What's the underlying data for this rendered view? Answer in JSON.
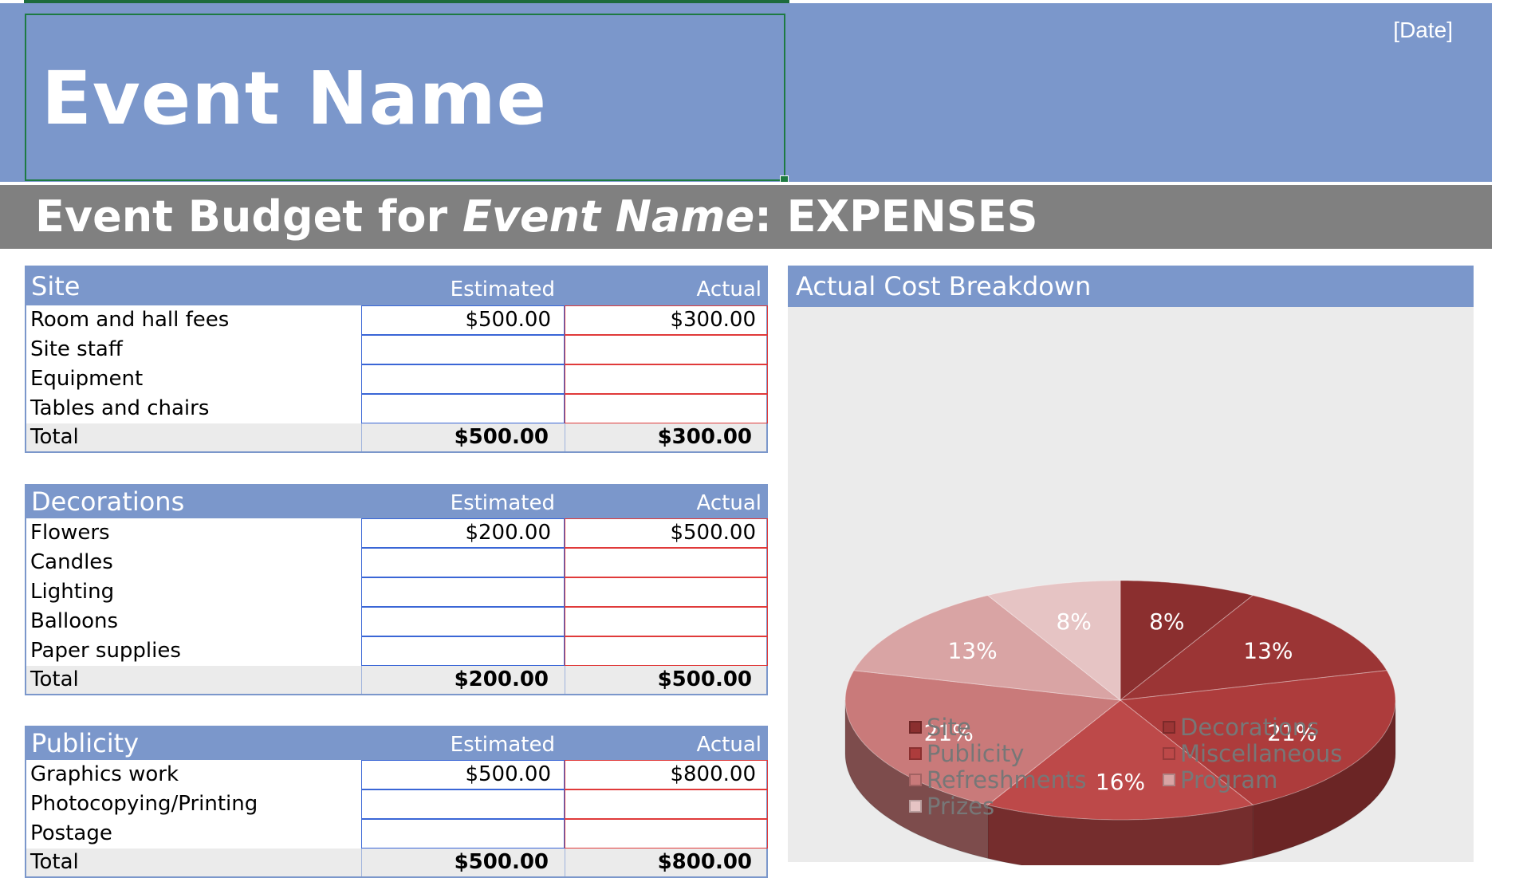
{
  "header": {
    "event_name": "Event Name",
    "date": "[Date]",
    "subtitle_prefix": "Event Budget for ",
    "subtitle_event": "Event Name",
    "subtitle_suffix": ": EXPENSES"
  },
  "sections": [
    {
      "title": "Site",
      "estimated_label": "Estimated",
      "actual_label": "Actual",
      "rows": [
        {
          "label": "Room and hall fees",
          "estimated": "$500.00",
          "actual": "$300.00"
        },
        {
          "label": "Site staff",
          "estimated": "",
          "actual": ""
        },
        {
          "label": "Equipment",
          "estimated": "",
          "actual": ""
        },
        {
          "label": "Tables and chairs",
          "estimated": "",
          "actual": ""
        }
      ],
      "total_label": "Total",
      "total_estimated": "$500.00",
      "total_actual": "$300.00"
    },
    {
      "title": "Decorations",
      "estimated_label": "Estimated",
      "actual_label": "Actual",
      "rows": [
        {
          "label": "Flowers",
          "estimated": "$200.00",
          "actual": "$500.00"
        },
        {
          "label": "Candles",
          "estimated": "",
          "actual": ""
        },
        {
          "label": "Lighting",
          "estimated": "",
          "actual": ""
        },
        {
          "label": "Balloons",
          "estimated": "",
          "actual": ""
        },
        {
          "label": "Paper supplies",
          "estimated": "",
          "actual": ""
        }
      ],
      "total_label": "Total",
      "total_estimated": "$200.00",
      "total_actual": "$500.00"
    },
    {
      "title": "Publicity",
      "estimated_label": "Estimated",
      "actual_label": "Actual",
      "rows": [
        {
          "label": "Graphics work",
          "estimated": "$500.00",
          "actual": "$800.00"
        },
        {
          "label": "Photocopying/Printing",
          "estimated": "",
          "actual": ""
        },
        {
          "label": "Postage",
          "estimated": "",
          "actual": ""
        }
      ],
      "total_label": "Total",
      "total_estimated": "$500.00",
      "total_actual": "$800.00"
    }
  ],
  "chart_data": {
    "type": "pie",
    "title": "Actual Cost Breakdown",
    "slices": [
      {
        "label": "Site",
        "pct_label": "8%",
        "value": 8,
        "color": "#8b2f2f"
      },
      {
        "label": "Decorations",
        "pct_label": "13%",
        "value": 13,
        "color": "#9b3535"
      },
      {
        "label": "Publicity",
        "pct_label": "21%",
        "value": 21,
        "color": "#ad3c3c"
      },
      {
        "label": "Miscellaneous",
        "pct_label": "16%",
        "value": 16,
        "color": "#bd4949"
      },
      {
        "label": "Refreshments",
        "pct_label": "21%",
        "value": 21,
        "color": "#c97a7a"
      },
      {
        "label": "Program",
        "pct_label": "13%",
        "value": 13,
        "color": "#d9a4a4"
      },
      {
        "label": "Prizes",
        "pct_label": "8%",
        "value": 8,
        "color": "#e6c4c4"
      }
    ],
    "legend": [
      {
        "label": "Site",
        "color": "#8b2f2f"
      },
      {
        "label": "Decorations",
        "color": "#9b3535"
      },
      {
        "label": "Publicity",
        "color": "#ad3c3c"
      },
      {
        "label": "Miscellaneous",
        "color": "#bd4949"
      },
      {
        "label": "Refreshments",
        "color": "#c97a7a"
      },
      {
        "label": "Program",
        "color": "#d9a4a4"
      },
      {
        "label": "Prizes",
        "color": "#e6c4c4"
      }
    ]
  }
}
